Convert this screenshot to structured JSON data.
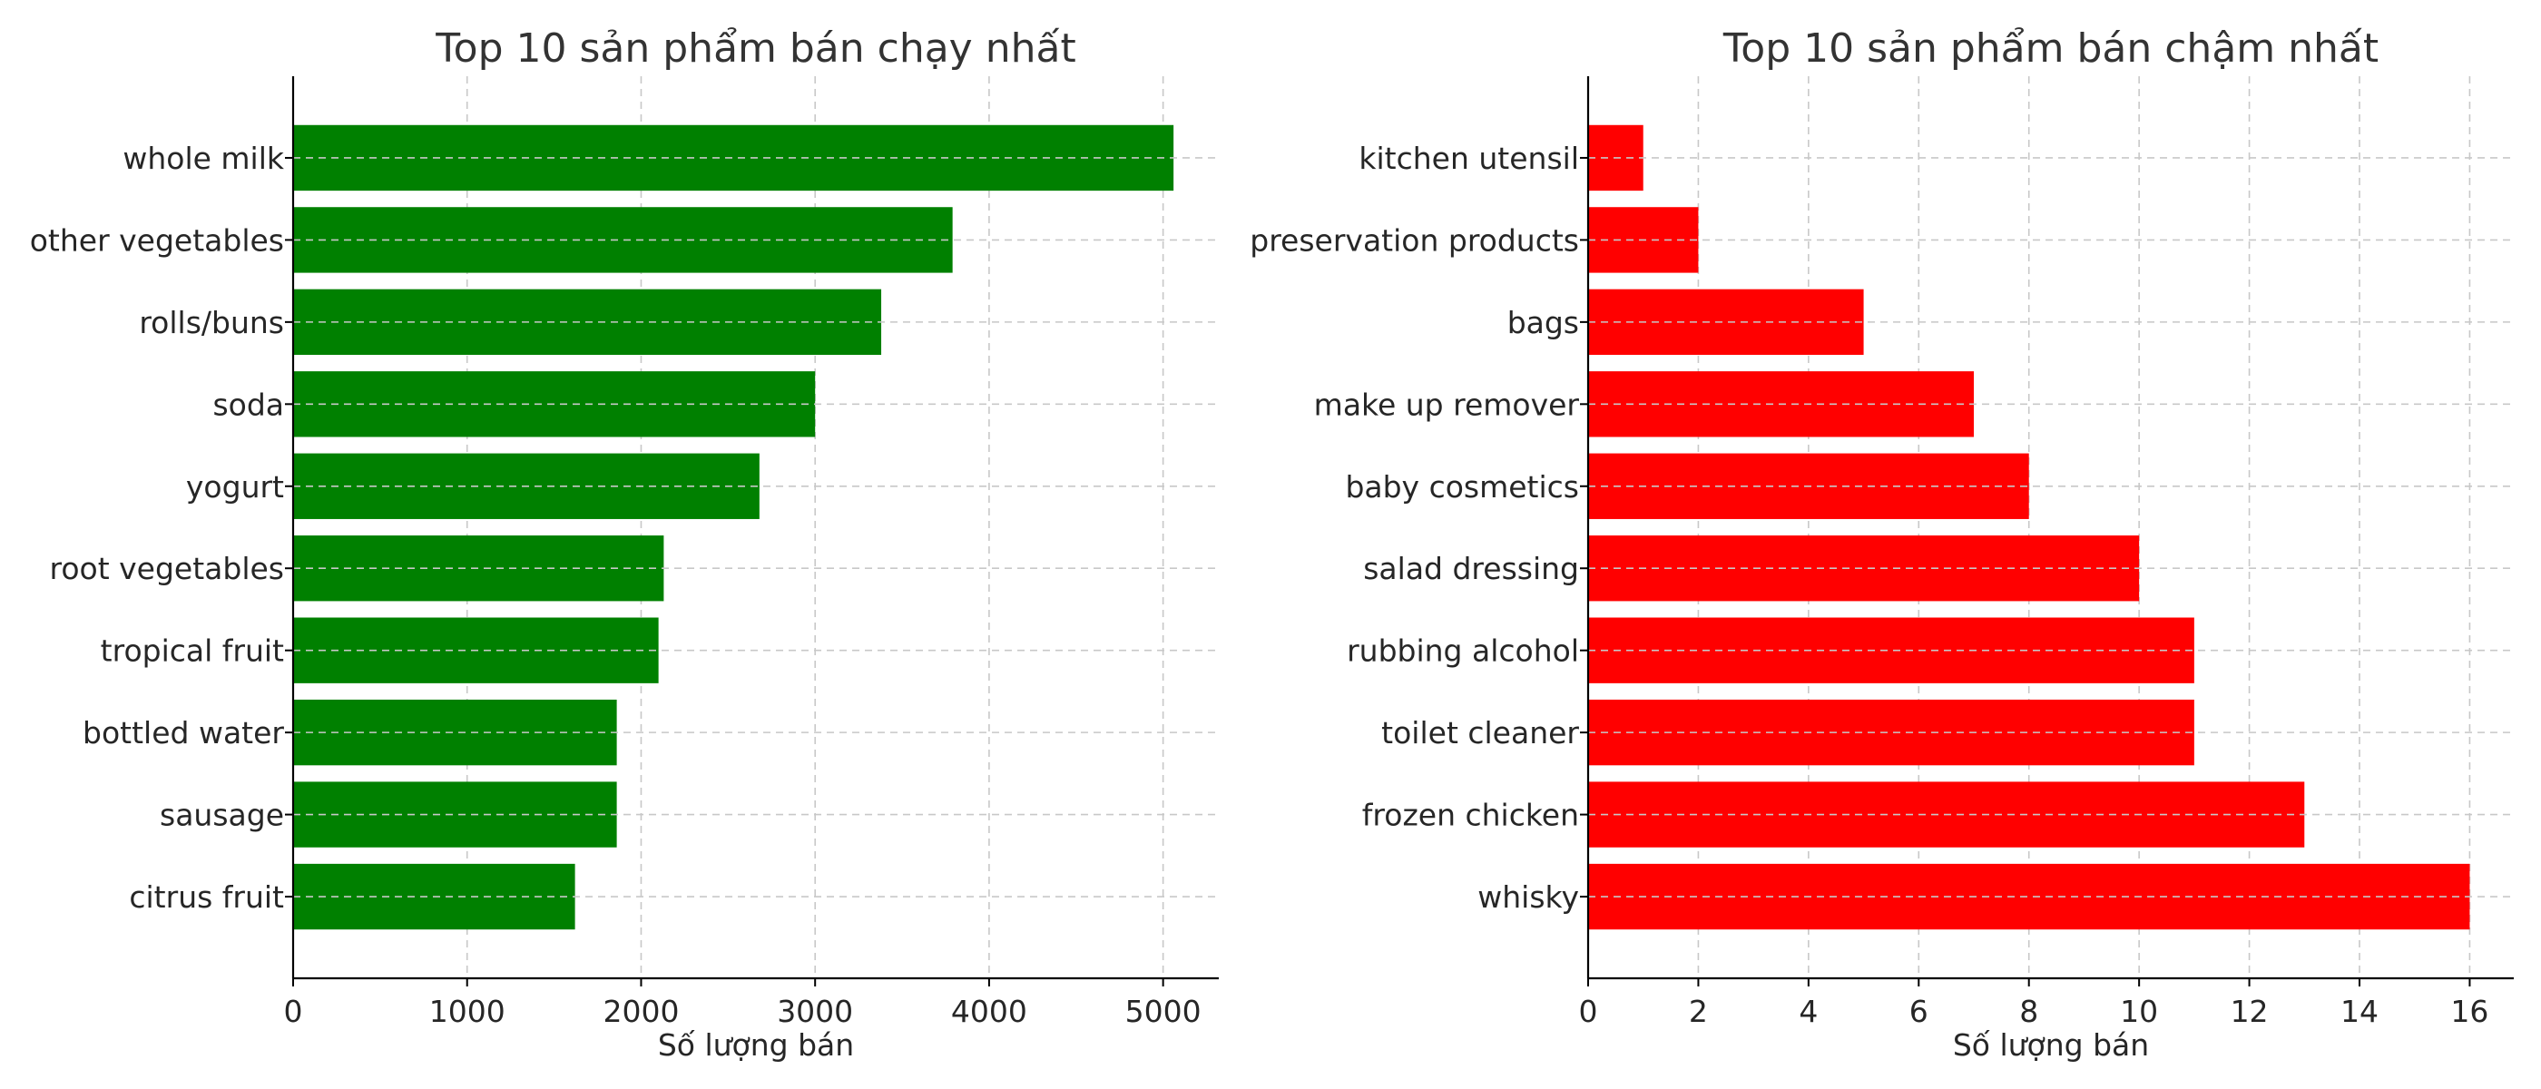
{
  "chart_data": [
    {
      "type": "bar",
      "orientation": "horizontal",
      "title": "Top 10 sản phẩm bán chạy nhất",
      "xlabel": "Số lượng bán",
      "ylabel": "",
      "categories": [
        "whole milk",
        "other vegetables",
        "rolls/buns",
        "soda",
        "yogurt",
        "root vegetables",
        "tropical fruit",
        "bottled water",
        "sausage",
        "citrus fruit"
      ],
      "values": [
        5060,
        3790,
        3380,
        3000,
        2680,
        2130,
        2100,
        1860,
        1860,
        1620
      ],
      "xlim": [
        0,
        5320
      ],
      "xticks": [
        0,
        1000,
        2000,
        3000,
        4000,
        5000
      ],
      "grid": true,
      "color": "#008000"
    },
    {
      "type": "bar",
      "orientation": "horizontal",
      "title": "Top 10 sản phẩm bán chậm nhất",
      "xlabel": "Số lượng bán",
      "ylabel": "",
      "categories": [
        "kitchen utensil",
        "preservation products",
        "bags",
        "make up remover",
        "baby cosmetics",
        "salad dressing",
        "rubbing alcohol",
        "toilet cleaner",
        "frozen chicken",
        "whisky"
      ],
      "values": [
        1,
        2,
        5,
        7,
        8,
        10,
        11,
        11,
        13,
        16
      ],
      "xlim": [
        0,
        16.8
      ],
      "xticks": [
        0,
        2,
        4,
        6,
        8,
        10,
        12,
        14,
        16
      ],
      "grid": true,
      "color": "#ff0000"
    }
  ]
}
